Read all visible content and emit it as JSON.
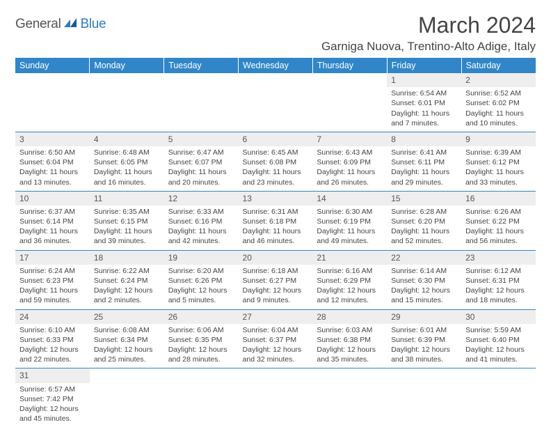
{
  "logo": {
    "part1": "General",
    "part2": "Blue"
  },
  "title": "March 2024",
  "location": "Garniga Nuova, Trentino-Alto Adige, Italy",
  "colors": {
    "header_bg": "#3086c8",
    "header_text": "#ffffff",
    "day_stripe": "#eeeeee",
    "cell_border": "#3086c8",
    "logo_accent": "#2f7cc0",
    "body_text": "#444444"
  },
  "weekdays": [
    "Sunday",
    "Monday",
    "Tuesday",
    "Wednesday",
    "Thursday",
    "Friday",
    "Saturday"
  ],
  "weeks": [
    [
      {
        "n": "",
        "sr": "",
        "ss": "",
        "dl": ""
      },
      {
        "n": "",
        "sr": "",
        "ss": "",
        "dl": ""
      },
      {
        "n": "",
        "sr": "",
        "ss": "",
        "dl": ""
      },
      {
        "n": "",
        "sr": "",
        "ss": "",
        "dl": ""
      },
      {
        "n": "",
        "sr": "",
        "ss": "",
        "dl": ""
      },
      {
        "n": "1",
        "sr": "Sunrise: 6:54 AM",
        "ss": "Sunset: 6:01 PM",
        "dl": "Daylight: 11 hours and 7 minutes."
      },
      {
        "n": "2",
        "sr": "Sunrise: 6:52 AM",
        "ss": "Sunset: 6:02 PM",
        "dl": "Daylight: 11 hours and 10 minutes."
      }
    ],
    [
      {
        "n": "3",
        "sr": "Sunrise: 6:50 AM",
        "ss": "Sunset: 6:04 PM",
        "dl": "Daylight: 11 hours and 13 minutes."
      },
      {
        "n": "4",
        "sr": "Sunrise: 6:48 AM",
        "ss": "Sunset: 6:05 PM",
        "dl": "Daylight: 11 hours and 16 minutes."
      },
      {
        "n": "5",
        "sr": "Sunrise: 6:47 AM",
        "ss": "Sunset: 6:07 PM",
        "dl": "Daylight: 11 hours and 20 minutes."
      },
      {
        "n": "6",
        "sr": "Sunrise: 6:45 AM",
        "ss": "Sunset: 6:08 PM",
        "dl": "Daylight: 11 hours and 23 minutes."
      },
      {
        "n": "7",
        "sr": "Sunrise: 6:43 AM",
        "ss": "Sunset: 6:09 PM",
        "dl": "Daylight: 11 hours and 26 minutes."
      },
      {
        "n": "8",
        "sr": "Sunrise: 6:41 AM",
        "ss": "Sunset: 6:11 PM",
        "dl": "Daylight: 11 hours and 29 minutes."
      },
      {
        "n": "9",
        "sr": "Sunrise: 6:39 AM",
        "ss": "Sunset: 6:12 PM",
        "dl": "Daylight: 11 hours and 33 minutes."
      }
    ],
    [
      {
        "n": "10",
        "sr": "Sunrise: 6:37 AM",
        "ss": "Sunset: 6:14 PM",
        "dl": "Daylight: 11 hours and 36 minutes."
      },
      {
        "n": "11",
        "sr": "Sunrise: 6:35 AM",
        "ss": "Sunset: 6:15 PM",
        "dl": "Daylight: 11 hours and 39 minutes."
      },
      {
        "n": "12",
        "sr": "Sunrise: 6:33 AM",
        "ss": "Sunset: 6:16 PM",
        "dl": "Daylight: 11 hours and 42 minutes."
      },
      {
        "n": "13",
        "sr": "Sunrise: 6:31 AM",
        "ss": "Sunset: 6:18 PM",
        "dl": "Daylight: 11 hours and 46 minutes."
      },
      {
        "n": "14",
        "sr": "Sunrise: 6:30 AM",
        "ss": "Sunset: 6:19 PM",
        "dl": "Daylight: 11 hours and 49 minutes."
      },
      {
        "n": "15",
        "sr": "Sunrise: 6:28 AM",
        "ss": "Sunset: 6:20 PM",
        "dl": "Daylight: 11 hours and 52 minutes."
      },
      {
        "n": "16",
        "sr": "Sunrise: 6:26 AM",
        "ss": "Sunset: 6:22 PM",
        "dl": "Daylight: 11 hours and 56 minutes."
      }
    ],
    [
      {
        "n": "17",
        "sr": "Sunrise: 6:24 AM",
        "ss": "Sunset: 6:23 PM",
        "dl": "Daylight: 11 hours and 59 minutes."
      },
      {
        "n": "18",
        "sr": "Sunrise: 6:22 AM",
        "ss": "Sunset: 6:24 PM",
        "dl": "Daylight: 12 hours and 2 minutes."
      },
      {
        "n": "19",
        "sr": "Sunrise: 6:20 AM",
        "ss": "Sunset: 6:26 PM",
        "dl": "Daylight: 12 hours and 5 minutes."
      },
      {
        "n": "20",
        "sr": "Sunrise: 6:18 AM",
        "ss": "Sunset: 6:27 PM",
        "dl": "Daylight: 12 hours and 9 minutes."
      },
      {
        "n": "21",
        "sr": "Sunrise: 6:16 AM",
        "ss": "Sunset: 6:29 PM",
        "dl": "Daylight: 12 hours and 12 minutes."
      },
      {
        "n": "22",
        "sr": "Sunrise: 6:14 AM",
        "ss": "Sunset: 6:30 PM",
        "dl": "Daylight: 12 hours and 15 minutes."
      },
      {
        "n": "23",
        "sr": "Sunrise: 6:12 AM",
        "ss": "Sunset: 6:31 PM",
        "dl": "Daylight: 12 hours and 18 minutes."
      }
    ],
    [
      {
        "n": "24",
        "sr": "Sunrise: 6:10 AM",
        "ss": "Sunset: 6:33 PM",
        "dl": "Daylight: 12 hours and 22 minutes."
      },
      {
        "n": "25",
        "sr": "Sunrise: 6:08 AM",
        "ss": "Sunset: 6:34 PM",
        "dl": "Daylight: 12 hours and 25 minutes."
      },
      {
        "n": "26",
        "sr": "Sunrise: 6:06 AM",
        "ss": "Sunset: 6:35 PM",
        "dl": "Daylight: 12 hours and 28 minutes."
      },
      {
        "n": "27",
        "sr": "Sunrise: 6:04 AM",
        "ss": "Sunset: 6:37 PM",
        "dl": "Daylight: 12 hours and 32 minutes."
      },
      {
        "n": "28",
        "sr": "Sunrise: 6:03 AM",
        "ss": "Sunset: 6:38 PM",
        "dl": "Daylight: 12 hours and 35 minutes."
      },
      {
        "n": "29",
        "sr": "Sunrise: 6:01 AM",
        "ss": "Sunset: 6:39 PM",
        "dl": "Daylight: 12 hours and 38 minutes."
      },
      {
        "n": "30",
        "sr": "Sunrise: 5:59 AM",
        "ss": "Sunset: 6:40 PM",
        "dl": "Daylight: 12 hours and 41 minutes."
      }
    ],
    [
      {
        "n": "31",
        "sr": "Sunrise: 6:57 AM",
        "ss": "Sunset: 7:42 PM",
        "dl": "Daylight: 12 hours and 45 minutes."
      },
      {
        "n": "",
        "sr": "",
        "ss": "",
        "dl": ""
      },
      {
        "n": "",
        "sr": "",
        "ss": "",
        "dl": ""
      },
      {
        "n": "",
        "sr": "",
        "ss": "",
        "dl": ""
      },
      {
        "n": "",
        "sr": "",
        "ss": "",
        "dl": ""
      },
      {
        "n": "",
        "sr": "",
        "ss": "",
        "dl": ""
      },
      {
        "n": "",
        "sr": "",
        "ss": "",
        "dl": ""
      }
    ]
  ]
}
